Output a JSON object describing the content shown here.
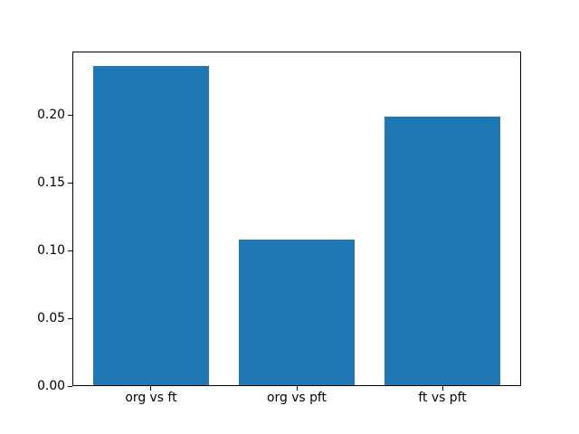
{
  "figure": {
    "background": "#ffffff",
    "spine_color": "#000000",
    "text_color": "#000000"
  },
  "chart_data": {
    "type": "bar",
    "categories": [
      "org vs ft",
      "org vs pft",
      "ft vs pft"
    ],
    "values": [
      0.236,
      0.108,
      0.199
    ],
    "title": "",
    "xlabel": "",
    "ylabel": "",
    "ylim": [
      0,
      0.247
    ],
    "yticks": {
      "values": [
        0,
        0.05,
        0.1,
        0.15,
        0.2
      ],
      "labels": [
        "0.00",
        "0.05",
        "0.10",
        "0.15",
        "0.20"
      ]
    },
    "bar_color": "#1f77b4",
    "bar_width_fraction": 0.8,
    "grid": false,
    "legend": null
  }
}
